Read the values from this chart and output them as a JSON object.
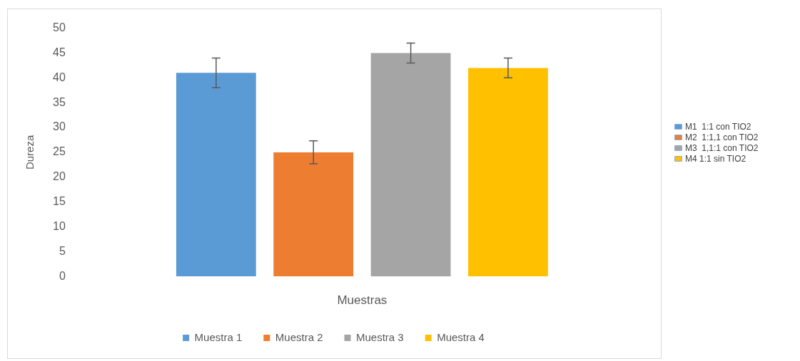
{
  "chart_data": {
    "type": "bar",
    "xlabel": "Muestras",
    "ylabel": "Dureza",
    "categories": [
      null
    ],
    "series": [
      {
        "name": "Muestra 1",
        "color": "#5b9bd5",
        "values": [
          41
        ],
        "errors": [
          3
        ]
      },
      {
        "name": "Muestra 2",
        "color": "#ed7d31",
        "values": [
          25
        ],
        "errors": [
          2.3
        ]
      },
      {
        "name": "Muestra 3",
        "color": "#a5a5a5",
        "values": [
          45
        ],
        "errors": [
          2
        ]
      },
      {
        "name": "Muestra 4",
        "color": "#ffc000",
        "values": [
          42
        ],
        "errors": [
          2
        ]
      }
    ],
    "ylim": [
      0,
      50
    ],
    "yticks": [
      0,
      5,
      10,
      15,
      20,
      25,
      30,
      35,
      40,
      45,
      50
    ],
    "legend": "bottom",
    "annotations": [
      "M1  1:1 con TIO2",
      "M2  1:1,1 con TIO2",
      "M3  1,1:1 con TIO2",
      "M4 1:1 sin TIO2"
    ]
  }
}
